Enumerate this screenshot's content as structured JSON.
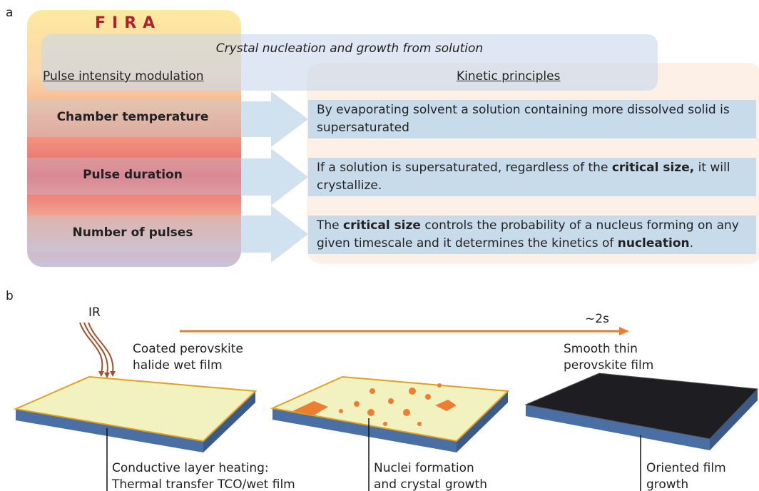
{
  "panel_a": {
    "label": "a",
    "brand": "FIRA",
    "title": "Crystal nucleation and growth from solution",
    "left_header": "Pulse intensity modulation",
    "right_header": "Kinetic principles",
    "rows": [
      {
        "parameter": "Chamber temperature",
        "principle": [
          {
            "text": "By evaporating solvent a solution containing more dissolved solid is supersaturated"
          }
        ]
      },
      {
        "parameter": "Pulse duration",
        "principle": [
          {
            "text": "If a solution is supersaturated, regardless of the "
          },
          {
            "text": "critical size,",
            "bold": true
          },
          {
            "text": " it will crystallize."
          }
        ]
      },
      {
        "parameter": "Number of pulses",
        "principle": [
          {
            "text": "The "
          },
          {
            "text": "critical size",
            "bold": true
          },
          {
            "text": " controls the probability of a nucleus forming on any given timescale and it determines the kinetics of "
          },
          {
            "text": "nucleation",
            "bold": true
          },
          {
            "text": "."
          }
        ]
      }
    ]
  },
  "panel_b": {
    "label": "b",
    "ir": "IR",
    "time": "~2s",
    "stages": [
      {
        "top": [
          "Coated perovskite",
          "halide wet film"
        ],
        "bottom": [
          "Conductive layer  heating:",
          "Thermal transfer TCO/wet film"
        ]
      },
      {
        "bottom": [
          "Nuclei formation",
          "and crystal growth"
        ]
      },
      {
        "top": [
          "Smooth thin",
          "perovskite film"
        ],
        "bottom": [
          "Oriented film",
          "growth"
        ]
      }
    ]
  }
}
